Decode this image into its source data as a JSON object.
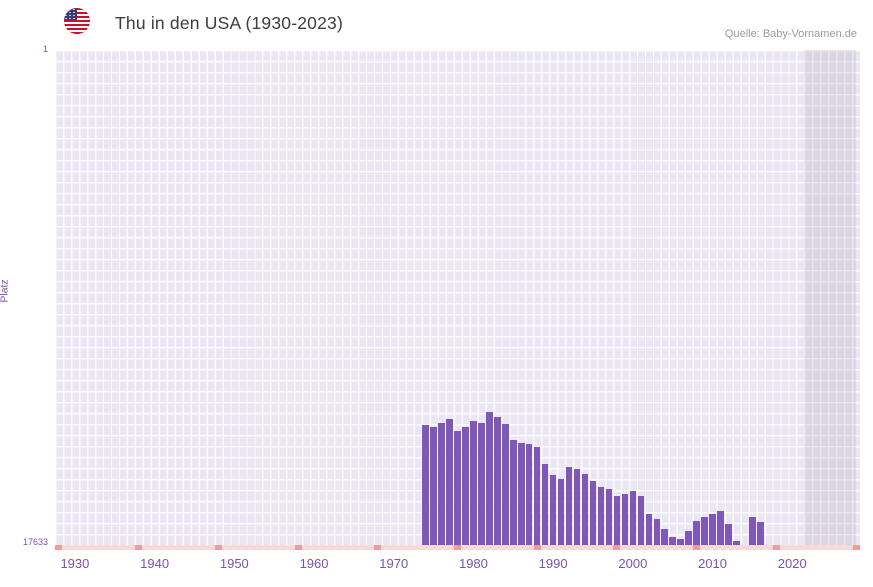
{
  "header": {
    "title": "Thu in den USA (1930-2023)",
    "flag_icon": "us-flag-icon",
    "source": "Quelle: Baby-Vornamen.de"
  },
  "chart_data": {
    "type": "bar",
    "title": "Thu in den USA (1930-2023)",
    "xlabel": "",
    "ylabel": "Platz",
    "legend": "none",
    "grid": "on",
    "y_axis": {
      "top_label": "1",
      "bottom_label": "17633",
      "min": 1,
      "max": 17633,
      "inverted": true,
      "note": "rank 1 is best (top of chart); bars grow upward from rank 17633"
    },
    "x_ticks": [
      1930,
      1940,
      1950,
      1960,
      1970,
      1980,
      1990,
      2000,
      2010,
      2020
    ],
    "x_range": [
      1927.5,
      2028.5
    ],
    "shaded_region": {
      "from": 2021.5,
      "to": 2028
    },
    "axis_marks_years": [
      1928,
      1938,
      1948,
      1958,
      1968,
      1978,
      1988,
      1998,
      2008,
      2018,
      2028
    ],
    "years": [
      1974,
      1975,
      1976,
      1977,
      1978,
      1979,
      1980,
      1981,
      1982,
      1983,
      1984,
      1985,
      1986,
      1987,
      1988,
      1989,
      1990,
      1991,
      1992,
      1993,
      1994,
      1995,
      1996,
      1997,
      1998,
      1999,
      2000,
      2001,
      2002,
      2003,
      2004,
      2005,
      2006,
      2007,
      2008,
      2009,
      2010,
      2011,
      2012,
      2013,
      2014,
      2015,
      2016
    ],
    "ranks": [
      13360,
      13430,
      13290,
      13150,
      13570,
      13430,
      13220,
      13290,
      12900,
      13080,
      13320,
      13890,
      14000,
      14030,
      14140,
      14750,
      15140,
      15280,
      14850,
      14920,
      15100,
      15350,
      15560,
      15630,
      15880,
      15810,
      15700,
      15880,
      16520,
      16700,
      17060,
      17340,
      17410,
      17130,
      16770,
      16630,
      16520,
      16420,
      16880,
      17480,
      null,
      16650,
      16800
    ],
    "colors": {
      "bar": "#7e57b8",
      "plot_bg": "#ebe6f3",
      "grid_line": "#ffffff",
      "tick_label": "#7a52b5",
      "axis_strip": "#f6dada",
      "axis_mark": "#ec9c9c",
      "title_text": "#3d3d3d",
      "source_text": "#9b9b9b"
    }
  }
}
